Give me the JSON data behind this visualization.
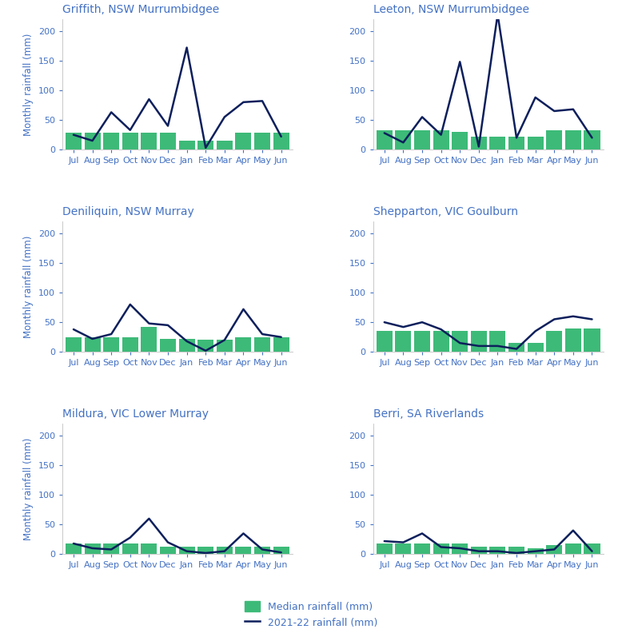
{
  "months": [
    "Jul",
    "Aug",
    "Sep",
    "Oct",
    "Nov",
    "Dec",
    "Jan",
    "Feb",
    "Mar",
    "Apr",
    "May",
    "Jun"
  ],
  "subplots": [
    {
      "title": "Griffith, NSW Murrumbidgee",
      "median": [
        28,
        28,
        28,
        28,
        28,
        28,
        15,
        15,
        15,
        28,
        28,
        28
      ],
      "observed": [
        25,
        15,
        63,
        33,
        85,
        40,
        172,
        3,
        55,
        80,
        82,
        22
      ]
    },
    {
      "title": "Leeton, NSW Murrumbidgee",
      "median": [
        33,
        33,
        33,
        33,
        30,
        22,
        22,
        22,
        22,
        33,
        33,
        33
      ],
      "observed": [
        28,
        12,
        55,
        25,
        148,
        5,
        228,
        20,
        88,
        65,
        68,
        20
      ]
    },
    {
      "title": "Deniliquin, NSW Murray",
      "median": [
        25,
        25,
        25,
        25,
        42,
        22,
        22,
        20,
        20,
        25,
        25,
        25
      ],
      "observed": [
        38,
        22,
        30,
        80,
        48,
        45,
        18,
        2,
        20,
        72,
        30,
        25
      ]
    },
    {
      "title": "Shepparton, VIC Goulburn",
      "median": [
        35,
        35,
        35,
        35,
        35,
        35,
        35,
        15,
        15,
        35,
        40,
        40
      ],
      "observed": [
        50,
        42,
        50,
        38,
        15,
        10,
        10,
        5,
        35,
        55,
        60,
        55
      ]
    },
    {
      "title": "Mildura, VIC Lower Murray",
      "median": [
        18,
        18,
        18,
        18,
        18,
        12,
        12,
        12,
        12,
        12,
        12,
        12
      ],
      "observed": [
        18,
        10,
        8,
        28,
        60,
        20,
        5,
        2,
        5,
        35,
        8,
        3
      ]
    },
    {
      "title": "Berri, SA Riverlands",
      "median": [
        18,
        18,
        18,
        18,
        18,
        12,
        12,
        12,
        10,
        15,
        18,
        18
      ],
      "observed": [
        22,
        20,
        35,
        12,
        10,
        5,
        5,
        2,
        5,
        8,
        40,
        5
      ]
    }
  ],
  "bar_color": "#3dba78",
  "line_color": "#0d1f5c",
  "title_color": "#4472c4",
  "axis_label_color": "#4472c4",
  "tick_color": "#4472c4",
  "ylabel": "Monthly rainfall (mm)",
  "ylim": [
    0,
    220
  ],
  "yticks": [
    0,
    50,
    100,
    150,
    200
  ],
  "legend_median_label": "Median rainfall (mm)",
  "legend_observed_label": "2021-22 rainfall (mm)",
  "background_color": "#ffffff"
}
